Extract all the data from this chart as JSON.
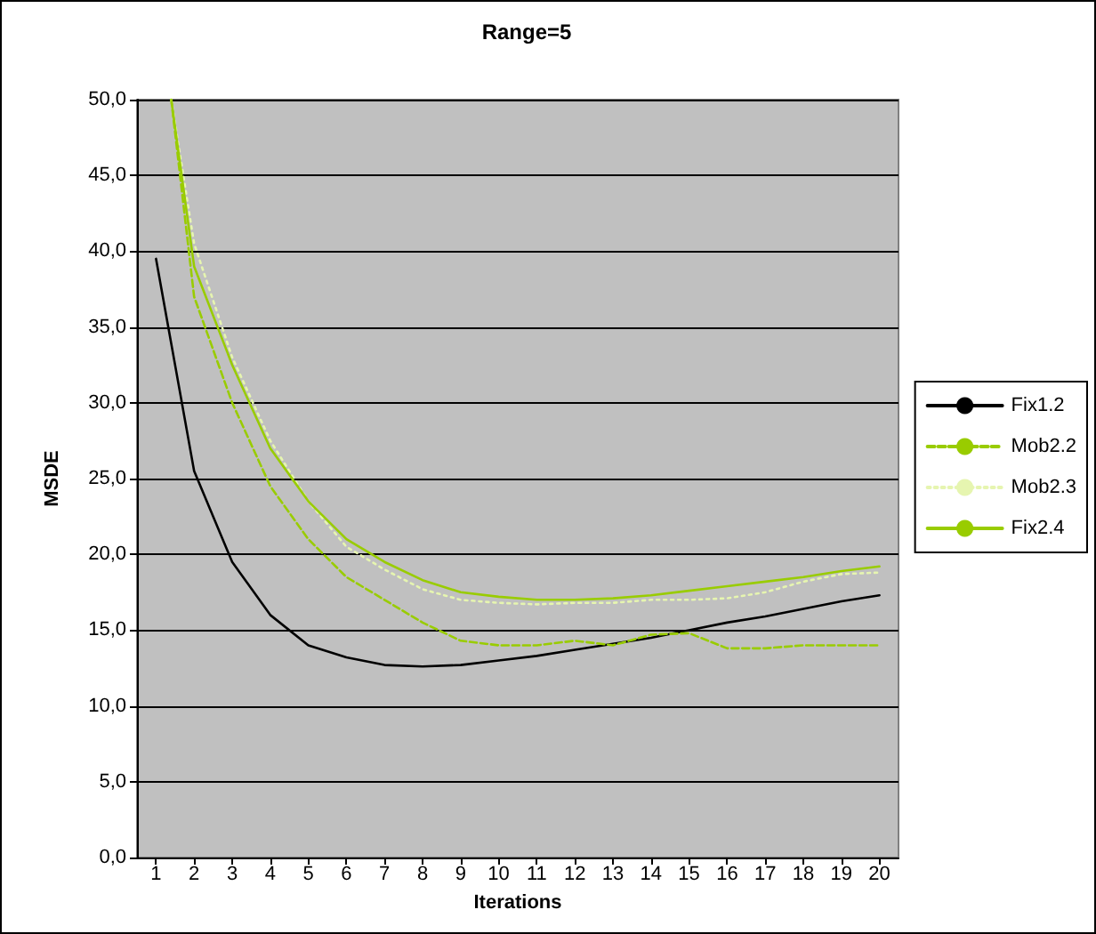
{
  "chart_data": {
    "type": "line",
    "title": "Range=5",
    "xlabel": "Iterations",
    "ylabel": "MSDE",
    "xlim": [
      0.5,
      20.5
    ],
    "xticks": [
      1,
      2,
      3,
      4,
      5,
      6,
      7,
      8,
      9,
      10,
      11,
      12,
      13,
      14,
      15,
      16,
      17,
      18,
      19,
      20
    ],
    "ylim": [
      0,
      50
    ],
    "yticks": [
      {
        "value": 0,
        "label": "0,0"
      },
      {
        "value": 5,
        "label": "5,0"
      },
      {
        "value": 10,
        "label": "10,0"
      },
      {
        "value": 15,
        "label": "15,0"
      },
      {
        "value": 20,
        "label": "20,0"
      },
      {
        "value": 25,
        "label": "25,0"
      },
      {
        "value": 30,
        "label": "30,0"
      },
      {
        "value": 35,
        "label": "35,0"
      },
      {
        "value": 40,
        "label": "40,0"
      },
      {
        "value": 45,
        "label": "45,0"
      },
      {
        "value": 50,
        "label": "50,0"
      }
    ],
    "grid": "y",
    "legend": "right",
    "marker": "none",
    "series": [
      {
        "name": "Fix1.2",
        "color": "#000000",
        "line_style": "solid",
        "x": [
          1,
          2,
          3,
          4,
          5,
          6,
          7,
          8,
          9,
          10,
          11,
          12,
          13,
          14,
          15,
          16,
          17,
          18,
          19,
          20
        ],
        "values": [
          39.5,
          25.5,
          19.5,
          16,
          14,
          13.2,
          12.7,
          12.6,
          12.7,
          13,
          13.3,
          13.7,
          14.1,
          14.5,
          15,
          15.5,
          15.9,
          16.4,
          16.9,
          17.3
        ]
      },
      {
        "name": "Mob2.2",
        "color": "#99cc00",
        "line_style": "dashed",
        "x": [
          1.4,
          2,
          3,
          4,
          5,
          6,
          7,
          8,
          9,
          10,
          11,
          12,
          13,
          14,
          15,
          16,
          17,
          18,
          19,
          20
        ],
        "values": [
          50,
          37,
          30,
          24.5,
          21,
          18.5,
          17,
          15.5,
          14.3,
          14,
          14,
          14.3,
          14,
          14.7,
          14.8,
          13.8,
          13.8,
          14,
          14,
          14
        ]
      },
      {
        "name": "Mob2.3",
        "color": "#e6f5b0",
        "line_style": "dotted",
        "x": [
          1.4,
          2,
          3,
          4,
          5,
          6,
          7,
          8,
          9,
          10,
          11,
          12,
          13,
          14,
          15,
          16,
          17,
          18,
          19,
          20
        ],
        "values": [
          50,
          40.5,
          33,
          27.5,
          23.5,
          20.5,
          19,
          17.7,
          17,
          16.8,
          16.7,
          16.8,
          16.8,
          17,
          17,
          17.1,
          17.5,
          18.2,
          18.7,
          18.8
        ]
      },
      {
        "name": "Fix2.4",
        "color": "#99cc00",
        "line_style": "solid",
        "x": [
          1.4,
          2,
          3,
          4,
          5,
          6,
          7,
          8,
          9,
          10,
          11,
          12,
          13,
          14,
          15,
          16,
          17,
          18,
          19,
          20
        ],
        "values": [
          50,
          39,
          32.5,
          27,
          23.5,
          21,
          19.5,
          18.3,
          17.5,
          17.2,
          17,
          17,
          17.1,
          17.3,
          17.6,
          17.9,
          18.2,
          18.5,
          18.9,
          19.2
        ]
      }
    ]
  }
}
